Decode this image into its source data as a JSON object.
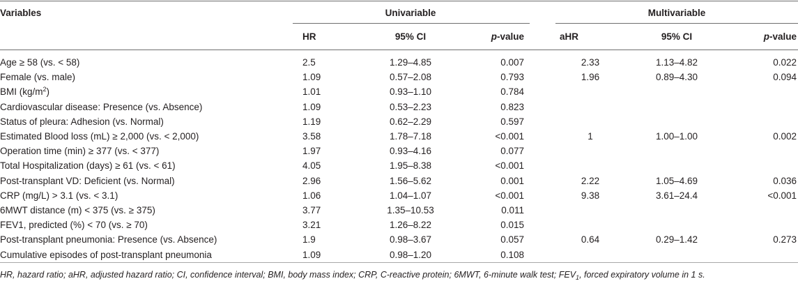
{
  "header": {
    "variables": "Variables",
    "univariable": "Univariable",
    "multivariable": "Multivariable",
    "hr": "HR",
    "ci": "95% CI",
    "p_prefix": "p",
    "p_suffix": "-value",
    "ahr": "aHR"
  },
  "rows": [
    {
      "label": "Age ≥ 58 (vs. < 58)",
      "hr": "2.5",
      "ci": "1.29–4.85",
      "p": "0.007",
      "ahr": "2.33",
      "aci": "1.13–4.82",
      "ap": "0.022"
    },
    {
      "label": "Female (vs. male)",
      "hr": "1.09",
      "ci": "0.57–2.08",
      "p": "0.793",
      "ahr": "1.96",
      "aci": "0.89–4.30",
      "ap": "0.094"
    },
    {
      "label_prefix": "BMI (kg/m",
      "label_sup": "2",
      "label_suffix": ")",
      "hr": "1.01",
      "ci": "0.93–1.10",
      "p": "0.784",
      "ahr": "",
      "aci": "",
      "ap": ""
    },
    {
      "label": "Cardiovascular disease: Presence (vs. Absence)",
      "hr": "1.09",
      "ci": "0.53–2.23",
      "p": "0.823",
      "ahr": "",
      "aci": "",
      "ap": ""
    },
    {
      "label": "Status of pleura: Adhesion (vs. Normal)",
      "hr": "1.19",
      "ci": "0.62–2.29",
      "p": "0.597",
      "ahr": "",
      "aci": "",
      "ap": ""
    },
    {
      "label": "Estimated Blood loss (mL) ≥ 2,000 (vs. < 2,000)",
      "hr": "3.58",
      "ci": "1.78–7.18",
      "p": "<0.001",
      "ahr": "1",
      "aci": "1.00–1.00",
      "ap": "0.002"
    },
    {
      "label": "Operation time (min) ≥ 377 (vs. < 377)",
      "hr": "1.97",
      "ci": "0.93–4.16",
      "p": "0.077",
      "ahr": "",
      "aci": "",
      "ap": ""
    },
    {
      "label": "Total Hospitalization (days) ≥ 61 (vs. < 61)",
      "hr": "4.05",
      "ci": "1.95–8.38",
      "p": "<0.001",
      "ahr": "",
      "aci": "",
      "ap": ""
    },
    {
      "label": "Post-transplant VD: Deficient (vs. Normal)",
      "hr": "2.96",
      "ci": "1.56–5.62",
      "p": "0.001",
      "ahr": "2.22",
      "aci": "1.05–4.69",
      "ap": "0.036"
    },
    {
      "label": "CRP (mg/L) > 3.1 (vs. < 3.1)",
      "hr": "1.06",
      "ci": "1.04–1.07",
      "p": "<0.001",
      "ahr": "9.38",
      "aci": "3.61–24.4",
      "ap": "<0.001"
    },
    {
      "label": "6MWT distance (m) < 375 (vs. ≥ 375)",
      "hr": "3.77",
      "ci": "1.35–10.53",
      "p": "0.011",
      "ahr": "",
      "aci": "",
      "ap": ""
    },
    {
      "label": "FEV1, predicted (%) < 70 (vs. ≥ 70)",
      "hr": "3.21",
      "ci": "1.26–8.22",
      "p": "0.015",
      "ahr": "",
      "aci": "",
      "ap": ""
    },
    {
      "label": "Post-transplant pneumonia: Presence (vs. Absence)",
      "hr": "1.9",
      "ci": "0.98–3.67",
      "p": "0.057",
      "ahr": "0.64",
      "aci": "0.29–1.42",
      "ap": "0.273"
    },
    {
      "label": "Cumulative episodes of post-transplant pneumonia",
      "hr": "1.09",
      "ci": "0.98–1.20",
      "p": "0.108",
      "ahr": "",
      "aci": "",
      "ap": ""
    }
  ],
  "footnote": {
    "part1": "HR, hazard ratio; aHR, adjusted hazard ratio; CI, confidence interval; BMI, body mass index; CRP, C-reactive protein; 6MWT, 6-minute walk test; FEV",
    "sub": "1",
    "part2": ", forced expiratory volume in 1 s."
  }
}
